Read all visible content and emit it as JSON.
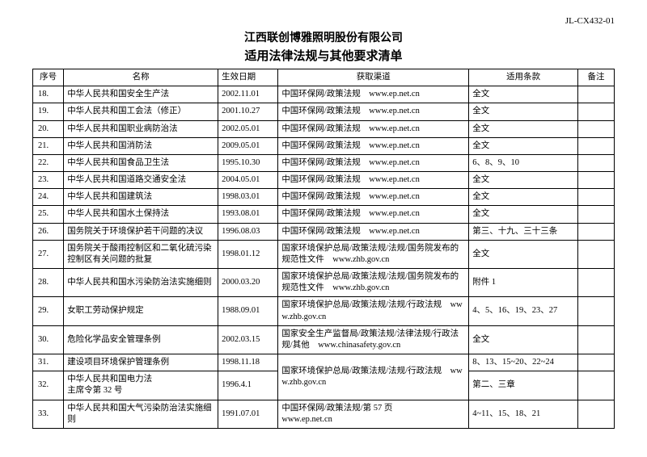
{
  "doc_code": "JL-CX432-01",
  "company": "江西联创博雅照明股份有限公司",
  "title": "适用法律法规与其他要求清单",
  "headers": {
    "no": "序号",
    "name": "名称",
    "date": "生效日期",
    "source": "获取渠道",
    "clause": "适用条款",
    "remark": "备注"
  },
  "rows": [
    {
      "no": "18.",
      "name": "中华人民共和国安全生产法",
      "date": "2002.11.01",
      "source": "中国环保网/政策法规　www.ep.net.cn",
      "clause": "全文",
      "remark": ""
    },
    {
      "no": "19.",
      "name": "中华人民共和国工会法（修正）",
      "date": "2001.10.27",
      "source": "中国环保网/政策法规　www.ep.net.cn",
      "clause": "全文",
      "remark": ""
    },
    {
      "no": "20.",
      "name": "中华人民共和国职业病防治法",
      "date": "2002.05.01",
      "source": "中国环保网/政策法规　www.ep.net.cn",
      "clause": "全文",
      "remark": ""
    },
    {
      "no": "21.",
      "name": "中华人民共和国消防法",
      "date": "2009.05.01",
      "source": "中国环保网/政策法规　www.ep.net.cn",
      "clause": "全文",
      "remark": ""
    },
    {
      "no": "22.",
      "name": "中华人民共和国食品卫生法",
      "date": "1995.10.30",
      "source": "中国环保网/政策法规　www.ep.net.cn",
      "clause": "6、8、9、10",
      "remark": ""
    },
    {
      "no": "23.",
      "name": "中华人民共和国道路交通安全法",
      "date": "2004.05.01",
      "source": "中国环保网/政策法规　www.ep.net.cn",
      "clause": "全文",
      "remark": ""
    },
    {
      "no": "24.",
      "name": "中华人民共和国建筑法",
      "date": "1998.03.01",
      "source": "中国环保网/政策法规　www.ep.net.cn",
      "clause": "全文",
      "remark": ""
    },
    {
      "no": "25.",
      "name": "中华人民共和国水土保持法",
      "date": "1993.08.01",
      "source": "中国环保网/政策法规　www.ep.net.cn",
      "clause": "全文",
      "remark": ""
    },
    {
      "no": "26.",
      "name": "国务院关于环境保护若干问题的决议",
      "date": "1996.08.03",
      "source": "中国环保网/政策法规　www.ep.net.cn",
      "clause": "第三、十九、三十三条",
      "remark": ""
    },
    {
      "no": "27.",
      "name": "国务院关于酸雨控制区和二氧化硫污染控制区有关问题的批复",
      "date": "1998.01.12",
      "source": "国家环境保护总局/政策法规/法规/国务院发布的规范性文件　www.zhb.gov.cn",
      "clause": "全文",
      "remark": ""
    },
    {
      "no": "28.",
      "name": "中华人民共和国水污染防治法实施细则",
      "date": "2000.03.20",
      "source": "国家环境保护总局/政策法规/法规/国务院发布的规范性文件　www.zhb.gov.cn",
      "clause": "附件 1",
      "remark": ""
    },
    {
      "no": "29.",
      "name": "女职工劳动保护规定",
      "date": "1988.09.01",
      "source": "国家环境保护总局/政策法规/法规/行政法规　www.zhb.gov.cn",
      "clause": "4、5、16、19、23、27",
      "remark": ""
    },
    {
      "no": "30.",
      "name": "危险化学品安全管理条例",
      "date": "2002.03.15",
      "source": "国家安全生产监督局/政策法规/法律法规/行政法规/其他　www.chinasafety.gov.cn",
      "clause": "全文",
      "remark": ""
    },
    {
      "no": "31.",
      "name": "建设项目环境保护管理条例",
      "date": "1998.11.18",
      "source": "国家环境保护总局/政策法规/法规/行政法规　www.zhb.gov.cn",
      "clause": "8、13、15~20、22~24",
      "remark": "",
      "sourceRowspan": 2
    },
    {
      "no": "32.",
      "name": "中华人民共和国电力法\n主席令第 32 号",
      "date": "1996.4.1",
      "source": "",
      "clause": "第二、三章",
      "remark": "",
      "skipSource": true
    },
    {
      "no": "33.",
      "name": "中华人民共和国大气污染防治法实施细则",
      "date": "1991.07.01",
      "source": "中国环保网/政策法规/第 57 页\nwww.ep.net.cn",
      "clause": "4~11、15、18、21",
      "remark": ""
    }
  ]
}
